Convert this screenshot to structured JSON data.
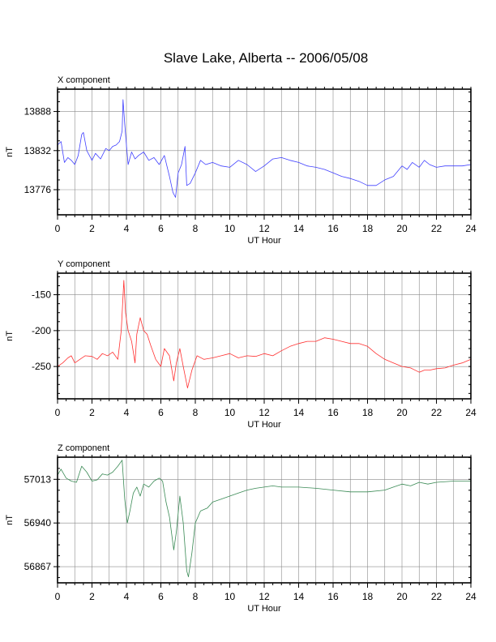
{
  "title": "Slave Lake, Alberta -- 2006/05/08",
  "chart_data": [
    {
      "type": "line",
      "panel_label": "X component",
      "xlabel": "UT Hour",
      "ylabel": "nT",
      "xlim": [
        0,
        24
      ],
      "ylim": [
        13740,
        13920
      ],
      "x_ticks": [
        0,
        2,
        4,
        6,
        8,
        10,
        12,
        14,
        16,
        18,
        20,
        22,
        24
      ],
      "y_ticks": [
        13776,
        13832,
        13888
      ],
      "grid": true,
      "series": [
        {
          "color": "#4040ff",
          "x": [
            0,
            0.2,
            0.4,
            0.6,
            0.8,
            1.0,
            1.2,
            1.4,
            1.5,
            1.7,
            2.0,
            2.2,
            2.5,
            2.8,
            3.0,
            3.2,
            3.4,
            3.6,
            3.75,
            3.8,
            3.9,
            4.0,
            4.1,
            4.3,
            4.5,
            4.7,
            5.0,
            5.3,
            5.6,
            5.9,
            6.2,
            6.5,
            6.7,
            6.85,
            7.0,
            7.2,
            7.4,
            7.5,
            7.7,
            8.0,
            8.3,
            8.6,
            9.0,
            9.5,
            10.0,
            10.5,
            11.0,
            11.5,
            12.0,
            12.5,
            13.0,
            13.5,
            14.0,
            14.5,
            15.0,
            15.5,
            16.0,
            16.5,
            17.0,
            17.5,
            18.0,
            18.5,
            19.0,
            19.5,
            20.0,
            20.3,
            20.6,
            21.0,
            21.3,
            21.6,
            22.0,
            22.5,
            23.0,
            23.5,
            24.0
          ],
          "y": [
            13840,
            13845,
            13815,
            13822,
            13818,
            13812,
            13825,
            13855,
            13858,
            13832,
            13818,
            13828,
            13820,
            13835,
            13832,
            13838,
            13840,
            13845,
            13860,
            13905,
            13870,
            13840,
            13812,
            13830,
            13820,
            13825,
            13830,
            13818,
            13822,
            13812,
            13825,
            13795,
            13772,
            13765,
            13800,
            13812,
            13838,
            13782,
            13785,
            13800,
            13818,
            13812,
            13815,
            13810,
            13808,
            13818,
            13812,
            13802,
            13810,
            13820,
            13822,
            13818,
            13815,
            13810,
            13808,
            13805,
            13800,
            13795,
            13792,
            13788,
            13782,
            13782,
            13790,
            13795,
            13810,
            13805,
            13815,
            13808,
            13818,
            13812,
            13808,
            13810,
            13810,
            13810,
            13812
          ]
        }
      ]
    },
    {
      "type": "line",
      "panel_label": "Y component",
      "xlabel": "UT Hour",
      "ylabel": "nT",
      "xlim": [
        0,
        24
      ],
      "ylim": [
        -295,
        -120
      ],
      "x_ticks": [
        0,
        2,
        4,
        6,
        8,
        10,
        12,
        14,
        16,
        18,
        20,
        22,
        24
      ],
      "y_ticks": [
        -250,
        -200,
        -150
      ],
      "grid": true,
      "series": [
        {
          "color": "#ff3030",
          "x": [
            0,
            0.3,
            0.6,
            0.8,
            1.0,
            1.3,
            1.6,
            2.0,
            2.3,
            2.6,
            2.9,
            3.2,
            3.5,
            3.7,
            3.85,
            3.95,
            4.1,
            4.3,
            4.5,
            4.6,
            4.8,
            5.0,
            5.2,
            5.4,
            5.7,
            6.0,
            6.2,
            6.5,
            6.75,
            6.9,
            7.1,
            7.3,
            7.55,
            7.8,
            8.1,
            8.5,
            9.0,
            9.5,
            10.0,
            10.5,
            11.0,
            11.5,
            12.0,
            12.5,
            13.0,
            13.5,
            14.0,
            14.5,
            15.0,
            15.5,
            16.0,
            16.5,
            17.0,
            17.5,
            18.0,
            18.5,
            19.0,
            19.5,
            20.0,
            20.5,
            21.0,
            21.3,
            21.6,
            22.0,
            22.5,
            23.0,
            23.5,
            24.0
          ],
          "y": [
            -250,
            -245,
            -238,
            -235,
            -245,
            -240,
            -235,
            -236,
            -240,
            -232,
            -235,
            -230,
            -240,
            -200,
            -130,
            -175,
            -200,
            -215,
            -245,
            -205,
            -182,
            -200,
            -205,
            -220,
            -240,
            -250,
            -225,
            -235,
            -270,
            -245,
            -225,
            -250,
            -280,
            -255,
            -235,
            -240,
            -238,
            -235,
            -232,
            -238,
            -235,
            -236,
            -232,
            -235,
            -228,
            -222,
            -218,
            -215,
            -215,
            -210,
            -212,
            -215,
            -218,
            -218,
            -222,
            -232,
            -240,
            -245,
            -250,
            -252,
            -258,
            -255,
            -255,
            -253,
            -252,
            -248,
            -245,
            -240
          ]
        }
      ]
    },
    {
      "type": "line",
      "panel_label": "Z component",
      "xlabel": "UT Hour",
      "ylabel": "nT",
      "xlim": [
        0,
        24
      ],
      "ylim": [
        56840,
        57050
      ],
      "x_ticks": [
        0,
        2,
        4,
        6,
        8,
        10,
        12,
        14,
        16,
        18,
        20,
        22,
        24
      ],
      "y_ticks": [
        56867,
        56940,
        57013
      ],
      "grid": true,
      "series": [
        {
          "color": "#3a8a55",
          "x": [
            0,
            0.2,
            0.5,
            0.8,
            1.1,
            1.4,
            1.7,
            2.0,
            2.3,
            2.6,
            2.9,
            3.2,
            3.5,
            3.75,
            3.9,
            4.05,
            4.2,
            4.4,
            4.6,
            4.8,
            5.0,
            5.3,
            5.6,
            5.9,
            6.1,
            6.3,
            6.5,
            6.75,
            6.9,
            7.1,
            7.3,
            7.5,
            7.6,
            7.8,
            8.0,
            8.3,
            8.7,
            9.0,
            9.5,
            10.0,
            10.5,
            11.0,
            11.5,
            12.0,
            12.5,
            13.0,
            14.0,
            15.0,
            16.0,
            17.0,
            18.0,
            19.0,
            19.5,
            20.0,
            20.5,
            21.0,
            21.5,
            22.0,
            23.0,
            24.0
          ],
          "y": [
            57020,
            57030,
            57015,
            57010,
            57008,
            57035,
            57025,
            57010,
            57012,
            57022,
            57020,
            57025,
            57035,
            57045,
            56980,
            56940,
            56960,
            56990,
            57000,
            56985,
            57005,
            57000,
            57010,
            57015,
            57010,
            56975,
            56950,
            56895,
            56925,
            56985,
            56940,
            56860,
            56850,
            56890,
            56940,
            56960,
            56965,
            56975,
            56980,
            56985,
            56990,
            56995,
            56998,
            57000,
            57002,
            57000,
            57000,
            56998,
            56995,
            56992,
            56992,
            56995,
            57000,
            57005,
            57002,
            57008,
            57005,
            57008,
            57010,
            57010
          ]
        }
      ]
    }
  ]
}
